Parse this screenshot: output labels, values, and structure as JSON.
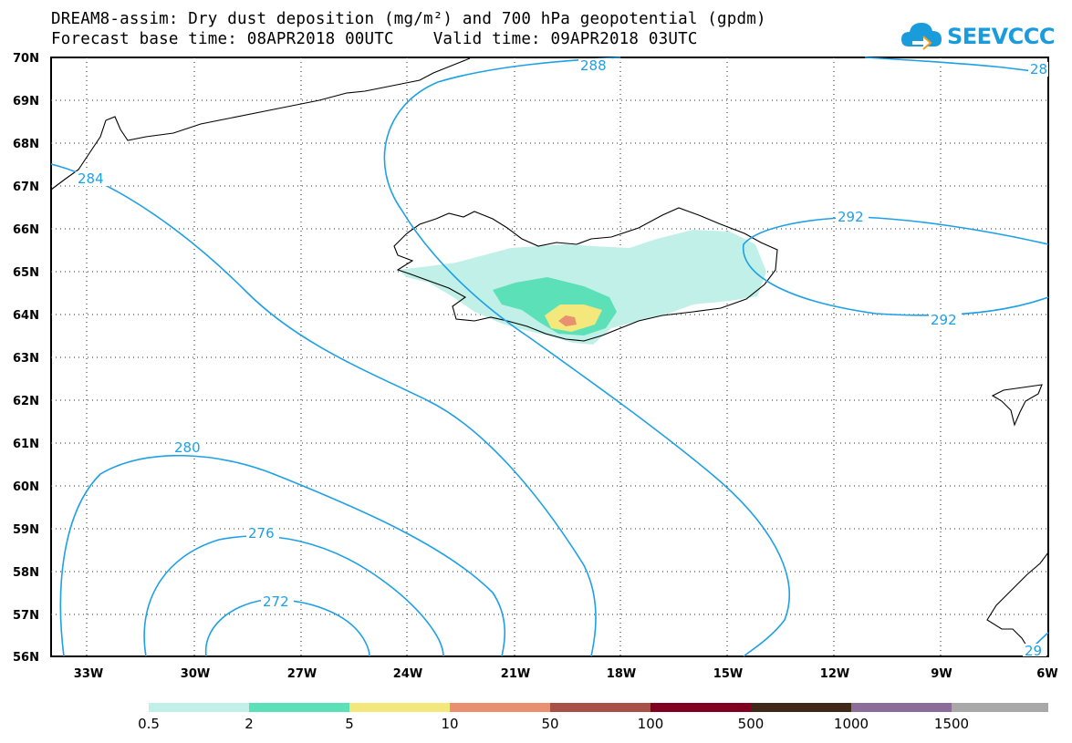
{
  "title": {
    "line1": "DREAM8-assim: Dry dust deposition (mg/m²) and 700 hPa geopotential (gpdm)",
    "line2": "Forecast base time: 08APR2018 00UTC    Valid time: 09APR2018 03UTC"
  },
  "logo": {
    "icon": "cloud-arrow-icon",
    "text": "SEEVCCC",
    "color": "#1a9cdc"
  },
  "map": {
    "region": {
      "lon_min": -34,
      "lon_max": -6,
      "lat_min": 56,
      "lat_max": 70
    },
    "lat_labels": [
      "70N",
      "69N",
      "68N",
      "67N",
      "66N",
      "65N",
      "64N",
      "63N",
      "62N",
      "61N",
      "60N",
      "59N",
      "58N",
      "57N",
      "56N"
    ],
    "lon_labels": [
      "33W",
      "30W",
      "27W",
      "24W",
      "21W",
      "18W",
      "15W",
      "12W",
      "9W",
      "6W"
    ],
    "contour_color": "#1ea0e6",
    "contour_labels": [
      "288",
      "28",
      "284",
      "292",
      "292",
      "280",
      "276",
      "272",
      "29"
    ],
    "grid": "dotted"
  },
  "legend": {
    "colors": [
      "#c0f0e8",
      "#5ce0b8",
      "#f4e87c",
      "#e89070",
      "#a85048",
      "#800020",
      "#402818",
      "#8c6c98",
      "#a8a8a8"
    ],
    "labels": [
      "0.5",
      "2",
      "5",
      "10",
      "50",
      "100",
      "500",
      "1000",
      "1500"
    ]
  }
}
